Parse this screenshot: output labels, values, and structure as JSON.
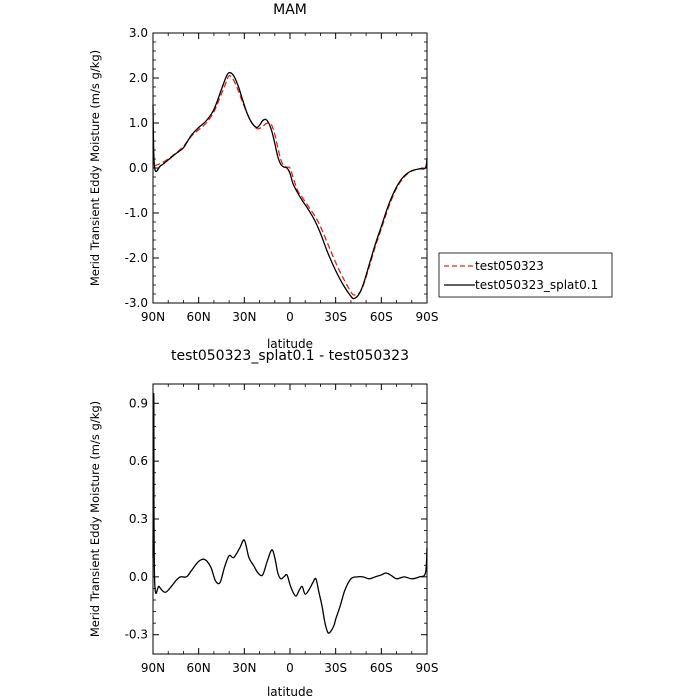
{
  "chart_data": [
    {
      "type": "line",
      "title": "MAM",
      "xlabel": "latitude",
      "ylabel": "Merid Transient Eddy Moisture (m/s g/kg)",
      "xlim": [
        90,
        -90
      ],
      "ylim": [
        -3.0,
        3.0
      ],
      "x_ticks": [
        90,
        60,
        30,
        0,
        -30,
        -60,
        -90
      ],
      "x_tick_labels": [
        "90N",
        "60N",
        "30N",
        "0",
        "30S",
        "60S",
        "90S"
      ],
      "y_ticks": [
        -3.0,
        -2.0,
        -1.0,
        0.0,
        1.0,
        2.0,
        3.0
      ],
      "y_tick_labels": [
        "-3.0",
        "-2.0",
        "-1.0",
        "0.0",
        "1.0",
        "2.0",
        "3.0"
      ],
      "grid": false,
      "legend_position": "outside-right",
      "series": [
        {
          "name": "test050323",
          "color": "#e8201c",
          "dash": "dashed",
          "x": [
            89,
            85,
            80,
            75,
            70,
            65,
            60,
            55,
            50,
            45,
            42,
            40,
            37,
            34,
            31,
            28,
            25,
            22,
            20,
            18,
            16,
            14,
            12,
            10,
            8,
            6,
            4,
            2,
            0,
            -2,
            -5,
            -8,
            -12,
            -16,
            -20,
            -25,
            -30,
            -35,
            -40,
            -42,
            -45,
            -48,
            -52,
            -56,
            -60,
            -65,
            -70,
            -75,
            -80,
            -85,
            -89
          ],
          "y": [
            0.05,
            0.1,
            0.2,
            0.33,
            0.48,
            0.7,
            0.85,
            1.0,
            1.25,
            1.65,
            1.9,
            2.05,
            1.95,
            1.72,
            1.45,
            1.2,
            1.0,
            0.88,
            0.88,
            0.92,
            0.98,
            1.0,
            0.95,
            0.75,
            0.45,
            0.18,
            0.05,
            0.02,
            0.0,
            -0.2,
            -0.5,
            -0.65,
            -0.85,
            -1.05,
            -1.3,
            -1.7,
            -2.1,
            -2.45,
            -2.75,
            -2.82,
            -2.8,
            -2.62,
            -2.2,
            -1.75,
            -1.35,
            -0.85,
            -0.45,
            -0.2,
            -0.07,
            -0.02,
            0.0
          ]
        },
        {
          "name": "test050323_splat0.1",
          "color": "#000000",
          "dash": "solid",
          "x": [
            90,
            89,
            85,
            80,
            75,
            70,
            65,
            60,
            55,
            50,
            45,
            42,
            40,
            37,
            34,
            31,
            28,
            25,
            22,
            20,
            18,
            16,
            14,
            12,
            10,
            8,
            6,
            4,
            2,
            0,
            -2,
            -5,
            -8,
            -12,
            -16,
            -20,
            -25,
            -30,
            -35,
            -40,
            -42,
            -45,
            -48,
            -52,
            -56,
            -60,
            -65,
            -70,
            -75,
            -80,
            -85,
            -89,
            -90
          ],
          "y": [
            1.4,
            0.02,
            0.05,
            0.18,
            0.32,
            0.45,
            0.72,
            0.9,
            1.05,
            1.3,
            1.75,
            2.02,
            2.12,
            2.05,
            1.82,
            1.5,
            1.2,
            1.0,
            0.9,
            0.95,
            1.05,
            1.08,
            1.0,
            0.82,
            0.55,
            0.25,
            0.08,
            0.02,
            0.0,
            -0.12,
            -0.35,
            -0.55,
            -0.72,
            -0.92,
            -1.15,
            -1.45,
            -1.9,
            -2.28,
            -2.6,
            -2.85,
            -2.9,
            -2.82,
            -2.6,
            -2.15,
            -1.7,
            -1.3,
            -0.8,
            -0.42,
            -0.18,
            -0.06,
            -0.02,
            0.0,
            0.22
          ]
        }
      ]
    },
    {
      "type": "line",
      "title": "test050323_splat0.1 - test050323",
      "xlabel": "latitude",
      "ylabel": "Merid Transient Eddy Moisture (m/s g/kg)",
      "xlim": [
        90,
        -90
      ],
      "ylim": [
        -0.4,
        1.0
      ],
      "x_ticks": [
        90,
        60,
        30,
        0,
        -30,
        -60,
        -90
      ],
      "x_tick_labels": [
        "90N",
        "60N",
        "30N",
        "0",
        "30S",
        "60S",
        "90S"
      ],
      "y_ticks": [
        -0.3,
        0.0,
        0.3,
        0.6,
        0.9
      ],
      "y_tick_labels": [
        "-0.3",
        "0.0",
        "0.3",
        "0.6",
        "0.9"
      ],
      "grid": false,
      "series": [
        {
          "color": "#000000",
          "dash": "solid",
          "x": [
            90,
            89.5,
            89,
            86,
            82,
            78,
            75,
            72,
            68,
            65,
            60,
            56,
            52,
            49,
            46,
            43,
            40,
            37,
            33,
            30,
            27,
            24,
            21,
            18,
            15,
            12,
            10,
            8,
            6,
            4,
            2,
            0,
            -2,
            -4,
            -6,
            -8,
            -10,
            -13,
            -15,
            -17,
            -19,
            -21,
            -23,
            -25,
            -27,
            -29,
            -30,
            -33,
            -36,
            -40,
            -44,
            -48,
            -52,
            -56,
            -60,
            -63,
            -66,
            -70,
            -75,
            -80,
            -85,
            -89,
            -90
          ],
          "y": [
            0.1,
            0.95,
            0.0,
            -0.05,
            -0.08,
            -0.05,
            -0.02,
            0.0,
            0.0,
            0.03,
            0.08,
            0.09,
            0.05,
            -0.02,
            -0.03,
            0.05,
            0.11,
            0.1,
            0.15,
            0.19,
            0.1,
            0.06,
            0.02,
            0.01,
            0.08,
            0.14,
            0.1,
            0.02,
            -0.01,
            0.0,
            0.01,
            -0.04,
            -0.08,
            -0.1,
            -0.07,
            -0.05,
            -0.09,
            -0.06,
            -0.03,
            -0.01,
            -0.08,
            -0.15,
            -0.24,
            -0.29,
            -0.28,
            -0.25,
            -0.22,
            -0.15,
            -0.07,
            -0.01,
            0.0,
            0.0,
            -0.01,
            0.0,
            0.01,
            0.02,
            0.01,
            -0.01,
            0.0,
            -0.01,
            0.0,
            0.02,
            0.15
          ]
        }
      ]
    }
  ]
}
